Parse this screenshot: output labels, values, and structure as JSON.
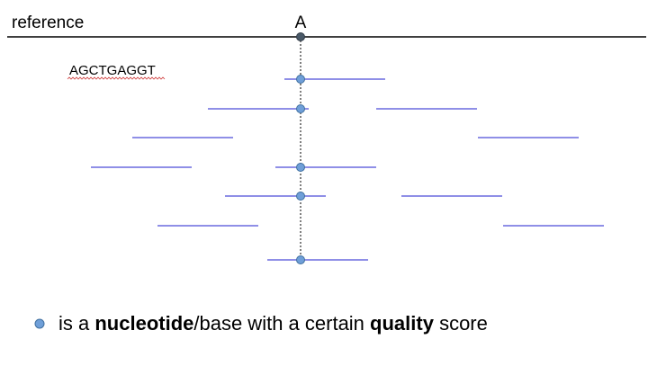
{
  "reference_label": "reference",
  "position_label": "A",
  "read_sequence": "AGCTGAGGT",
  "legend": {
    "part1": "is a ",
    "part2": "nucleotide",
    "part3": "/base with a certain ",
    "part4": "quality",
    "part5": " score"
  },
  "colors": {
    "read_line": "#6a6adf",
    "base_dot": "#6f9fd8",
    "base_dot_stroke": "#3f6f9f",
    "reference_line": "#000000",
    "reference_dot": "#4a5968",
    "spellcheck": "#d04040"
  }
}
